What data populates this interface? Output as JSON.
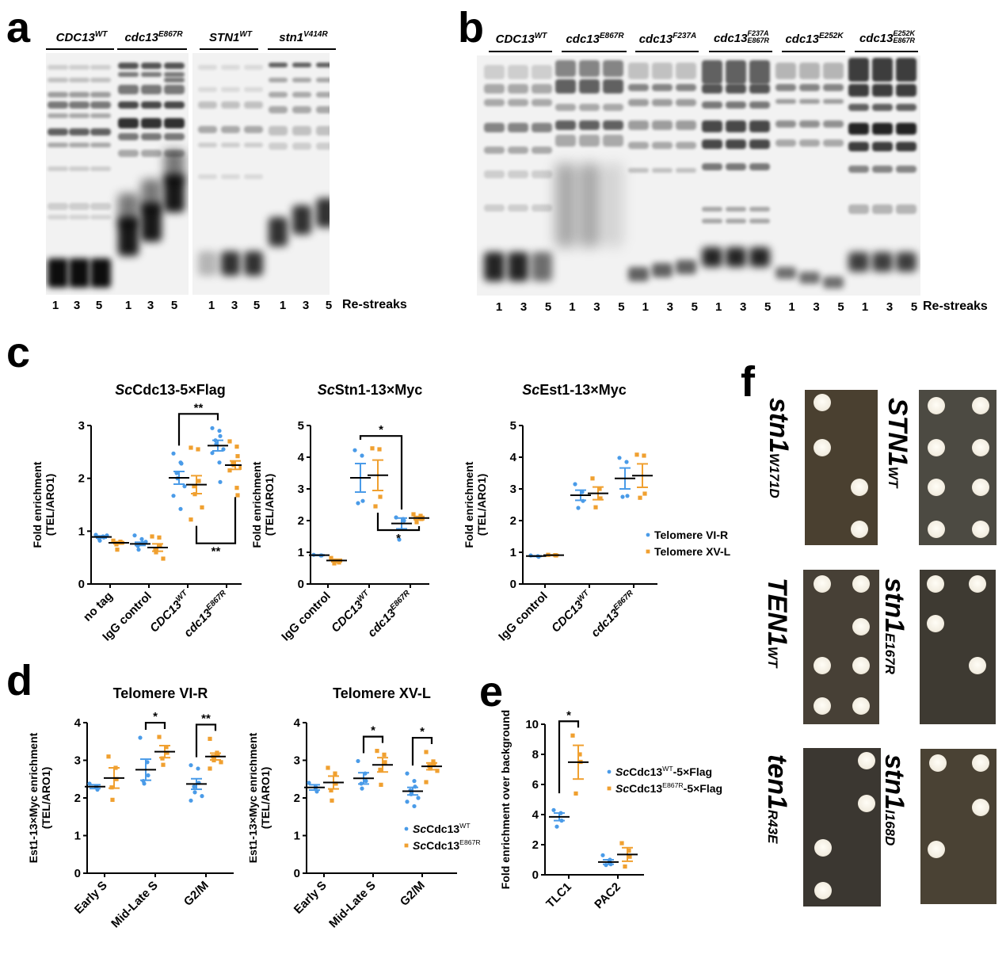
{
  "panels": {
    "a": {
      "letter": "a",
      "groups": [
        {
          "name": "CDC13",
          "sup": "WT"
        },
        {
          "name": "cdc13",
          "sup": "E867R"
        },
        {
          "name": "STN1",
          "sup": "WT"
        },
        {
          "name": "stn1",
          "sup": "V414R"
        }
      ],
      "lane_numbers": [
        "1",
        "3",
        "5",
        "1",
        "3",
        "5",
        "1",
        "3",
        "5",
        "1",
        "3",
        "5"
      ],
      "axis_label": "Re-streaks"
    },
    "b": {
      "letter": "b",
      "groups": [
        {
          "name": "cdc13",
          "sup": "WT",
          "display": "CDC13"
        },
        {
          "name": "cdc13",
          "sup": "E867R"
        },
        {
          "name": "cdc13",
          "sup": "F237A"
        },
        {
          "name": "cdc13",
          "sup": "F237A",
          "sub": "E867R"
        },
        {
          "name": "cdc13",
          "sup": "E252K"
        },
        {
          "name": "cdc13",
          "sup": "E252K",
          "sub": "E867R"
        }
      ],
      "lane_numbers": [
        "1",
        "3",
        "5",
        "1",
        "3",
        "5",
        "1",
        "3",
        "5",
        "1",
        "3",
        "5",
        "1",
        "3",
        "5",
        "1",
        "3",
        "5"
      ],
      "axis_label": "Re-streaks"
    },
    "c": {
      "letter": "c"
    },
    "d": {
      "letter": "d"
    },
    "e": {
      "letter": "e"
    },
    "f": {
      "letter": "f",
      "plates": [
        {
          "name": "stn1",
          "sub": "W171D"
        },
        {
          "name": "STN1",
          "sub": "WT"
        },
        {
          "name": "TEN1",
          "sub": "WT"
        },
        {
          "name": "stn1",
          "sub": "E167R"
        },
        {
          "name": "ten1",
          "sub": "R43E"
        },
        {
          "name": "stn1",
          "sub": "I168D"
        }
      ]
    }
  },
  "colors": {
    "blue": "#4a9be8",
    "orange": "#f0a030",
    "mean": "#000000"
  },
  "chart_data": [
    {
      "id": "c1",
      "type": "scatter",
      "title_italic": "Sc",
      "title_rest": "Cdc13-5×Flag",
      "ylabel": [
        "Fold enrichment",
        "(TEL/ARO1)"
      ],
      "ylim": [
        0,
        3
      ],
      "yticks": [
        "0",
        "1",
        "2",
        "3"
      ],
      "categories": [
        {
          "main": "no tag",
          "sup": ""
        },
        {
          "main": "IgG control",
          "sup": ""
        },
        {
          "main": "CDC13",
          "sup": "WT"
        },
        {
          "main": "cdc13",
          "sup": "E867R"
        }
      ],
      "series": [
        {
          "name": "Telomere VI-R",
          "color": "blue",
          "groups": [
            {
              "points": [
                0.93,
                0.9,
                0.88,
                0.86,
                0.82,
                0.92
              ],
              "mean": 0.89,
              "sem": 0.02
            },
            {
              "points": [
                0.92,
                0.85,
                0.78,
                0.72,
                0.65,
                0.8
              ],
              "mean": 0.76,
              "sem": 0.03
            },
            {
              "points": [
                2.47,
                2.3,
                2.28,
                2.1,
                2.0,
                1.85,
                1.67,
                1.42
              ],
              "mean": 2.01,
              "sem": 0.12
            },
            {
              "points": [
                2.95,
                2.9,
                2.8,
                2.72,
                2.65,
                2.55,
                2.48,
                2.3,
                1.93
              ],
              "mean": 2.62,
              "sem": 0.1
            }
          ]
        },
        {
          "name": "Telomere XV-L",
          "color": "orange",
          "groups": [
            {
              "points": [
                0.82,
                0.8,
                0.78,
                0.75,
                0.65
              ],
              "mean": 0.78,
              "sem": 0.02
            },
            {
              "points": [
                0.9,
                0.88,
                0.72,
                0.65,
                0.6,
                0.48
              ],
              "mean": 0.69,
              "sem": 0.07
            },
            {
              "points": [
                2.58,
                2.55,
                1.95,
                1.85,
                1.7,
                1.45,
                1.22
              ],
              "mean": 1.88,
              "sem": 0.17
            },
            {
              "points": [
                2.7,
                2.6,
                2.42,
                2.3,
                2.25,
                2.2,
                2.15,
                1.82,
                1.68
              ],
              "mean": 2.25,
              "sem": 0.08
            }
          ]
        }
      ],
      "brackets": [
        {
          "from": [
            2,
            0
          ],
          "to": [
            3,
            0
          ],
          "side": "top",
          "label": "**"
        },
        {
          "from": [
            2,
            1
          ],
          "to": [
            3,
            1
          ],
          "side": "bottom",
          "label": "**"
        }
      ]
    },
    {
      "id": "c2",
      "type": "scatter",
      "title_italic": "Sc",
      "title_rest": "Stn1-13×Myc",
      "ylabel": [
        "Fold enrichment",
        "(TEL/ARO1)"
      ],
      "ylim": [
        0,
        5
      ],
      "yticks": [
        "0",
        "1",
        "2",
        "3",
        "4",
        "5"
      ],
      "categories": [
        {
          "main": "IgG control",
          "sup": ""
        },
        {
          "main": "CDC13",
          "sup": "WT"
        },
        {
          "main": "cdc13",
          "sup": "E867R"
        }
      ],
      "series": [
        {
          "name": "Telomere VI-R",
          "color": "blue",
          "groups": [
            {
              "points": [
                0.92,
                0.9,
                0.9
              ],
              "mean": 0.91,
              "sem": 0.01
            },
            {
              "points": [
                4.22,
                4.05,
                2.62,
                2.55
              ],
              "mean": 3.35,
              "sem": 0.45
            },
            {
              "points": [
                2.1,
                2.05,
                2.0,
                1.4
              ],
              "mean": 1.91,
              "sem": 0.17
            }
          ]
        },
        {
          "name": "Telomere XV-L",
          "color": "orange",
          "groups": [
            {
              "points": [
                0.82,
                0.72,
                0.68,
                0.65
              ],
              "mean": 0.74,
              "sem": 0.04
            },
            {
              "points": [
                4.28,
                4.25,
                2.75,
                2.45
              ],
              "mean": 3.43,
              "sem": 0.48
            },
            {
              "points": [
                2.2,
                2.15,
                2.05,
                1.95
              ],
              "mean": 2.08,
              "sem": 0.05
            }
          ]
        }
      ],
      "brackets": [
        {
          "from": [
            1,
            0
          ],
          "to": [
            2,
            0
          ],
          "side": "top",
          "label": "*"
        },
        {
          "from": [
            1,
            1
          ],
          "to": [
            2,
            1
          ],
          "side": "bottom",
          "label": "*"
        }
      ]
    },
    {
      "id": "c3",
      "type": "scatter",
      "title_italic": "Sc",
      "title_rest": "Est1-13×Myc",
      "ylabel": [
        "Fold enrichment",
        "(TEL/ARO1)"
      ],
      "ylim": [
        0,
        5
      ],
      "yticks": [
        "0",
        "1",
        "2",
        "3",
        "4",
        "5"
      ],
      "categories": [
        {
          "main": "IgG control",
          "sup": ""
        },
        {
          "main": "CDC13",
          "sup": "WT"
        },
        {
          "main": "cdc13",
          "sup": "E867R"
        }
      ],
      "legend": {
        "position": "right",
        "entries": [
          "Telomere VI-R",
          "Telomere XV-L"
        ]
      },
      "series": [
        {
          "name": "Telomere VI-R",
          "color": "blue",
          "groups": [
            {
              "points": [
                0.9,
                0.88,
                0.86
              ],
              "mean": 0.88,
              "sem": 0.01
            },
            {
              "points": [
                3.15,
                2.9,
                2.62,
                2.4
              ],
              "mean": 2.8,
              "sem": 0.16
            },
            {
              "points": [
                3.98,
                3.85,
                2.78,
                2.75
              ],
              "mean": 3.33,
              "sem": 0.33
            }
          ]
        },
        {
          "name": "Telomere XV-L",
          "color": "orange",
          "groups": [
            {
              "points": [
                0.92,
                0.91,
                0.9
              ],
              "mean": 0.91,
              "sem": 0.01
            },
            {
              "points": [
                3.33,
                3.0,
                2.7,
                2.42
              ],
              "mean": 2.86,
              "sem": 0.2
            },
            {
              "points": [
                4.08,
                4.05,
                2.85,
                2.72
              ],
              "mean": 3.42,
              "sem": 0.37
            }
          ]
        }
      ],
      "brackets": []
    },
    {
      "id": "d1",
      "type": "scatter",
      "title_italic": "",
      "title_rest": "Telomere VI-R",
      "ylabel": [
        "Est1-13×Myc enrichment",
        "(TEL/ARO1)"
      ],
      "ylim": [
        0,
        4
      ],
      "yticks": [
        "0",
        "1",
        "2",
        "3",
        "4"
      ],
      "categories": [
        {
          "main": "Early S",
          "sup": ""
        },
        {
          "main": "Mid-Late S",
          "sup": ""
        },
        {
          "main": "G2/M",
          "sup": ""
        }
      ],
      "series": [
        {
          "name": "ScCdc13 WT",
          "color": "blue",
          "groups": [
            {
              "points": [
                2.38,
                2.3,
                2.22
              ],
              "mean": 2.3,
              "sem": 0.05
            },
            {
              "points": [
                3.6,
                2.95,
                2.6,
                2.45,
                2.38
              ],
              "mean": 2.75,
              "sem": 0.28
            },
            {
              "points": [
                2.87,
                2.78,
                2.4,
                2.3,
                2.15,
                2.05,
                1.93
              ],
              "mean": 2.37,
              "sem": 0.14
            }
          ]
        },
        {
          "name": "ScCdc13 E867R",
          "color": "orange",
          "groups": [
            {
              "points": [
                3.1,
                2.8,
                2.5,
                2.28,
                1.95
              ],
              "mean": 2.53,
              "sem": 0.27
            },
            {
              "points": [
                3.62,
                3.35,
                3.2,
                3.05,
                2.88
              ],
              "mean": 3.23,
              "sem": 0.16
            },
            {
              "points": [
                3.57,
                3.2,
                3.15,
                3.1,
                3.0,
                2.95,
                2.78
              ],
              "mean": 3.1,
              "sem": 0.09
            }
          ]
        }
      ],
      "brackets": [
        {
          "from": [
            1,
            0
          ],
          "to": [
            1,
            1
          ],
          "side": "top",
          "label": "*"
        },
        {
          "from": [
            2,
            0
          ],
          "to": [
            2,
            1
          ],
          "side": "top",
          "label": "**"
        }
      ]
    },
    {
      "id": "d2",
      "type": "scatter",
      "title_italic": "",
      "title_rest": "Telomere XV-L",
      "ylabel": [
        "Est1-13×Myc enrichment",
        "(TEL/ARO1)"
      ],
      "ylim": [
        0,
        4
      ],
      "yticks": [
        "0",
        "1",
        "2",
        "3",
        "4"
      ],
      "categories": [
        {
          "main": "Early S",
          "sup": ""
        },
        {
          "main": "Mid-Late S",
          "sup": ""
        },
        {
          "main": "G2/M",
          "sup": ""
        }
      ],
      "legend": {
        "position": "bottom-right",
        "entries": [
          "ScCdc13 WT",
          "ScCdc13 E867R"
        ]
      },
      "series": [
        {
          "name": "ScCdc13 WT",
          "color": "blue",
          "groups": [
            {
              "points": [
                2.4,
                2.28,
                2.17
              ],
              "mean": 2.28,
              "sem": 0.07
            },
            {
              "points": [
                2.98,
                2.65,
                2.45,
                2.38,
                2.25
              ],
              "mean": 2.52,
              "sem": 0.15
            },
            {
              "points": [
                2.65,
                2.45,
                2.3,
                2.2,
                2.1,
                2.0,
                1.9,
                1.78
              ],
              "mean": 2.18,
              "sem": 0.1
            }
          ]
        },
        {
          "name": "ScCdc13 E867R",
          "color": "orange",
          "groups": [
            {
              "points": [
                2.8,
                2.65,
                2.38,
                2.2,
                1.93
              ],
              "mean": 2.41,
              "sem": 0.17
            },
            {
              "points": [
                3.25,
                3.15,
                2.95,
                2.75,
                2.35
              ],
              "mean": 2.88,
              "sem": 0.19
            },
            {
              "points": [
                3.22,
                2.97,
                2.9,
                2.85,
                2.78,
                2.72,
                2.42
              ],
              "mean": 2.84,
              "sem": 0.09
            }
          ]
        }
      ],
      "brackets": [
        {
          "from": [
            1,
            0
          ],
          "to": [
            1,
            1
          ],
          "side": "top",
          "label": "*"
        },
        {
          "from": [
            2,
            0
          ],
          "to": [
            2,
            1
          ],
          "side": "top",
          "label": "*"
        }
      ]
    },
    {
      "id": "e1",
      "type": "scatter",
      "title_italic": "",
      "title_rest": "",
      "ylabel": [
        "Fold enrichment over background"
      ],
      "ylim": [
        0,
        10
      ],
      "yticks": [
        "0",
        "2",
        "4",
        "6",
        "8",
        "10"
      ],
      "categories": [
        {
          "main": "TLC1",
          "sup": ""
        },
        {
          "main": "PAC2",
          "sup": ""
        }
      ],
      "legend": {
        "position": "right",
        "entries": [
          "ScCdc13 WT-5×Flag",
          "ScCdc13 E867R-5×Flag"
        ]
      },
      "series": [
        {
          "name": "ScCdc13 WT-5×Flag",
          "color": "blue",
          "groups": [
            {
              "points": [
                4.3,
                4.1,
                3.6,
                3.2
              ],
              "mean": 3.85,
              "sem": 0.25
            },
            {
              "points": [
                1.3,
                1.0,
                0.7,
                0.65
              ],
              "mean": 0.85,
              "sem": 0.15
            }
          ]
        },
        {
          "name": "ScCdc13 E867R-5×Flag",
          "color": "orange",
          "groups": [
            {
              "points": [
                9.25,
                8.0,
                7.5,
                5.4
              ],
              "mean": 7.48,
              "sem": 1.12
            },
            {
              "points": [
                2.1,
                1.6,
                1.2,
                0.55
              ],
              "mean": 1.35,
              "sem": 0.45
            }
          ]
        }
      ],
      "brackets": [
        {
          "from": [
            0,
            0
          ],
          "to": [
            0,
            1
          ],
          "side": "top",
          "label": "*"
        }
      ]
    }
  ],
  "legends": {
    "c": [
      {
        "label": "Telomere VI-R",
        "color": "blue"
      },
      {
        "label": "Telomere XV-L",
        "color": "orange"
      }
    ],
    "d": [
      {
        "italic": "Sc",
        "main": "Cdc13",
        "sup": "WT",
        "tail": "",
        "color": "blue"
      },
      {
        "italic": "Sc",
        "main": "Cdc13",
        "sup": "E867R",
        "tail": "",
        "color": "orange"
      }
    ],
    "e": [
      {
        "italic": "Sc",
        "main": "Cdc13",
        "sup": "WT",
        "tail": "-5×Flag",
        "color": "blue"
      },
      {
        "italic": "Sc",
        "main": "Cdc13",
        "sup": "E867R",
        "tail": "-5×Flag",
        "color": "orange"
      }
    ]
  }
}
